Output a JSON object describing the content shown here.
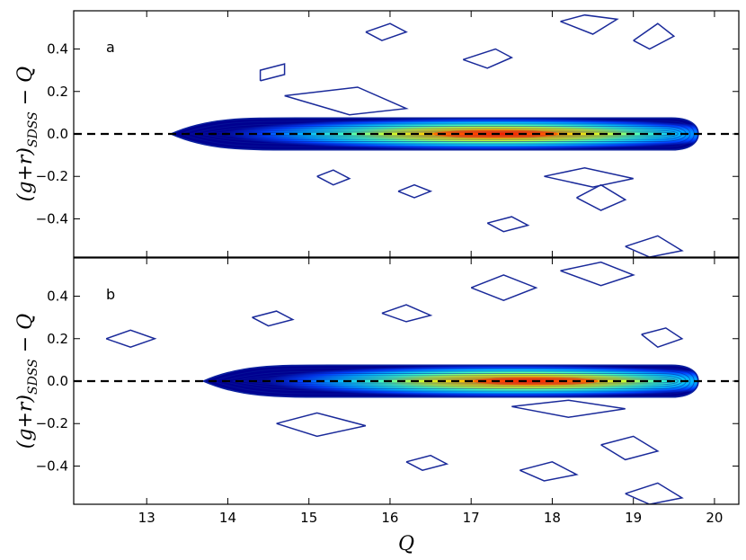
{
  "figure": {
    "x_axis_label": "Q",
    "y_axis_label_main": "(g+r)",
    "y_axis_label_sub": "SDSS",
    "y_axis_label_tail": " − Q"
  },
  "chart_data": [
    {
      "type": "contour-density",
      "panel_label": "a",
      "xlabel": "Q",
      "ylabel": "(g+r)_SDSS − Q",
      "xlim": [
        12.1,
        20.3
      ],
      "ylim": [
        -0.58,
        0.58
      ],
      "x_ticks": [
        13,
        14,
        15,
        16,
        17,
        18,
        19,
        20
      ],
      "x_tick_labels": [
        "13",
        "14",
        "15",
        "16",
        "17",
        "18",
        "19",
        "20"
      ],
      "y_ticks": [
        -0.4,
        -0.2,
        0.0,
        0.2,
        0.4
      ],
      "y_tick_labels": [
        "−0.4",
        "−0.2",
        "0.0",
        "0.2",
        "0.4"
      ],
      "reference_line": {
        "y": 0.0,
        "style": "dashed",
        "color": "#000000"
      },
      "density_core": {
        "x_range": [
          13.3,
          19.8
        ],
        "peak_x": 17.3,
        "peak_y": 0.0,
        "color_scale": [
          "#000080",
          "#0000ff",
          "#00bfff",
          "#00ffff",
          "#80ff80",
          "#ffff00",
          "#ff8000",
          "#ff0000"
        ]
      },
      "outlier_contours": [
        {
          "name": "upper-1",
          "points": [
            [
              14.4,
              0.25
            ],
            [
              14.7,
              0.28
            ],
            [
              14.7,
              0.33
            ],
            [
              14.4,
              0.3
            ],
            [
              14.4,
              0.25
            ]
          ]
        },
        {
          "name": "upper-2",
          "points": [
            [
              15.7,
              0.48
            ],
            [
              16.0,
              0.52
            ],
            [
              16.2,
              0.48
            ],
            [
              15.9,
              0.44
            ],
            [
              15.7,
              0.48
            ]
          ]
        },
        {
          "name": "upper-3",
          "points": [
            [
              16.9,
              0.35
            ],
            [
              17.3,
              0.4
            ],
            [
              17.5,
              0.36
            ],
            [
              17.2,
              0.31
            ],
            [
              16.9,
              0.35
            ]
          ]
        },
        {
          "name": "upper-4",
          "points": [
            [
              18.1,
              0.53
            ],
            [
              18.4,
              0.56
            ],
            [
              18.8,
              0.54
            ],
            [
              18.5,
              0.47
            ],
            [
              18.1,
              0.53
            ]
          ]
        },
        {
          "name": "upper-5",
          "points": [
            [
              19.0,
              0.44
            ],
            [
              19.3,
              0.52
            ],
            [
              19.5,
              0.46
            ],
            [
              19.2,
              0.4
            ],
            [
              19.0,
              0.44
            ]
          ]
        },
        {
          "name": "upper-6",
          "points": [
            [
              14.7,
              0.18
            ],
            [
              15.6,
              0.22
            ],
            [
              16.2,
              0.12
            ],
            [
              15.5,
              0.09
            ],
            [
              14.7,
              0.18
            ]
          ]
        },
        {
          "name": "lower-1",
          "points": [
            [
              15.1,
              -0.2
            ],
            [
              15.3,
              -0.17
            ],
            [
              15.5,
              -0.21
            ],
            [
              15.3,
              -0.24
            ],
            [
              15.1,
              -0.2
            ]
          ]
        },
        {
          "name": "lower-2",
          "points": [
            [
              16.1,
              -0.27
            ],
            [
              16.3,
              -0.24
            ],
            [
              16.5,
              -0.27
            ],
            [
              16.3,
              -0.3
            ],
            [
              16.1,
              -0.27
            ]
          ]
        },
        {
          "name": "lower-3",
          "points": [
            [
              17.2,
              -0.42
            ],
            [
              17.5,
              -0.39
            ],
            [
              17.7,
              -0.43
            ],
            [
              17.4,
              -0.46
            ],
            [
              17.2,
              -0.42
            ]
          ]
        },
        {
          "name": "lower-4",
          "points": [
            [
              18.3,
              -0.3
            ],
            [
              18.6,
              -0.24
            ],
            [
              18.9,
              -0.31
            ],
            [
              18.6,
              -0.36
            ],
            [
              18.3,
              -0.3
            ]
          ]
        },
        {
          "name": "lower-5",
          "points": [
            [
              18.9,
              -0.53
            ],
            [
              19.3,
              -0.48
            ],
            [
              19.6,
              -0.55
            ],
            [
              19.2,
              -0.58
            ],
            [
              18.9,
              -0.53
            ]
          ]
        },
        {
          "name": "lower-6",
          "points": [
            [
              17.9,
              -0.2
            ],
            [
              18.4,
              -0.16
            ],
            [
              19.0,
              -0.21
            ],
            [
              18.5,
              -0.25
            ],
            [
              17.9,
              -0.2
            ]
          ]
        }
      ]
    },
    {
      "type": "contour-density",
      "panel_label": "b",
      "xlabel": "Q",
      "ylabel": "(g+r)_SDSS − Q",
      "xlim": [
        12.1,
        20.3
      ],
      "ylim": [
        -0.58,
        0.58
      ],
      "x_ticks": [
        13,
        14,
        15,
        16,
        17,
        18,
        19,
        20
      ],
      "x_tick_labels": [
        "13",
        "14",
        "15",
        "16",
        "17",
        "18",
        "19",
        "20"
      ],
      "y_ticks": [
        -0.4,
        -0.2,
        0.0,
        0.2,
        0.4
      ],
      "y_tick_labels": [
        "−0.4",
        "−0.2",
        "0.0",
        "0.2",
        "0.4"
      ],
      "reference_line": {
        "y": 0.0,
        "style": "dashed",
        "color": "#000000"
      },
      "density_core": {
        "x_range": [
          13.7,
          19.8
        ],
        "peak_x": 17.8,
        "peak_y": 0.0,
        "color_scale": [
          "#000080",
          "#0000ff",
          "#00bfff",
          "#00ffff",
          "#80ff80",
          "#ffff00",
          "#ff8000",
          "#ff0000"
        ]
      },
      "outlier_contours": [
        {
          "name": "upper-1",
          "points": [
            [
              12.5,
              0.2
            ],
            [
              12.8,
              0.24
            ],
            [
              13.1,
              0.2
            ],
            [
              12.8,
              0.16
            ],
            [
              12.5,
              0.2
            ]
          ]
        },
        {
          "name": "upper-2",
          "points": [
            [
              14.3,
              0.3
            ],
            [
              14.6,
              0.33
            ],
            [
              14.8,
              0.29
            ],
            [
              14.5,
              0.26
            ],
            [
              14.3,
              0.3
            ]
          ]
        },
        {
          "name": "upper-3",
          "points": [
            [
              15.9,
              0.32
            ],
            [
              16.2,
              0.36
            ],
            [
              16.5,
              0.31
            ],
            [
              16.2,
              0.28
            ],
            [
              15.9,
              0.32
            ]
          ]
        },
        {
          "name": "upper-4",
          "points": [
            [
              17.0,
              0.44
            ],
            [
              17.4,
              0.5
            ],
            [
              17.8,
              0.44
            ],
            [
              17.4,
              0.38
            ],
            [
              17.0,
              0.44
            ]
          ]
        },
        {
          "name": "upper-5",
          "points": [
            [
              18.1,
              0.52
            ],
            [
              18.6,
              0.56
            ],
            [
              19.0,
              0.5
            ],
            [
              18.6,
              0.45
            ],
            [
              18.1,
              0.52
            ]
          ]
        },
        {
          "name": "upper-6",
          "points": [
            [
              19.1,
              0.22
            ],
            [
              19.4,
              0.25
            ],
            [
              19.6,
              0.2
            ],
            [
              19.3,
              0.16
            ],
            [
              19.1,
              0.22
            ]
          ]
        },
        {
          "name": "lower-1",
          "points": [
            [
              14.6,
              -0.2
            ],
            [
              15.1,
              -0.15
            ],
            [
              15.7,
              -0.21
            ],
            [
              15.1,
              -0.26
            ],
            [
              14.6,
              -0.2
            ]
          ]
        },
        {
          "name": "lower-2",
          "points": [
            [
              16.2,
              -0.38
            ],
            [
              16.5,
              -0.35
            ],
            [
              16.7,
              -0.39
            ],
            [
              16.4,
              -0.42
            ],
            [
              16.2,
              -0.38
            ]
          ]
        },
        {
          "name": "lower-3",
          "points": [
            [
              17.6,
              -0.42
            ],
            [
              18.0,
              -0.38
            ],
            [
              18.3,
              -0.44
            ],
            [
              17.9,
              -0.47
            ],
            [
              17.6,
              -0.42
            ]
          ]
        },
        {
          "name": "lower-4",
          "points": [
            [
              18.6,
              -0.3
            ],
            [
              19.0,
              -0.26
            ],
            [
              19.3,
              -0.33
            ],
            [
              18.9,
              -0.37
            ],
            [
              18.6,
              -0.3
            ]
          ]
        },
        {
          "name": "lower-5",
          "points": [
            [
              18.9,
              -0.53
            ],
            [
              19.3,
              -0.48
            ],
            [
              19.6,
              -0.55
            ],
            [
              19.2,
              -0.58
            ],
            [
              18.9,
              -0.53
            ]
          ]
        },
        {
          "name": "lower-6",
          "points": [
            [
              17.5,
              -0.12
            ],
            [
              18.2,
              -0.09
            ],
            [
              18.9,
              -0.13
            ],
            [
              18.2,
              -0.17
            ],
            [
              17.5,
              -0.12
            ]
          ]
        }
      ]
    }
  ]
}
